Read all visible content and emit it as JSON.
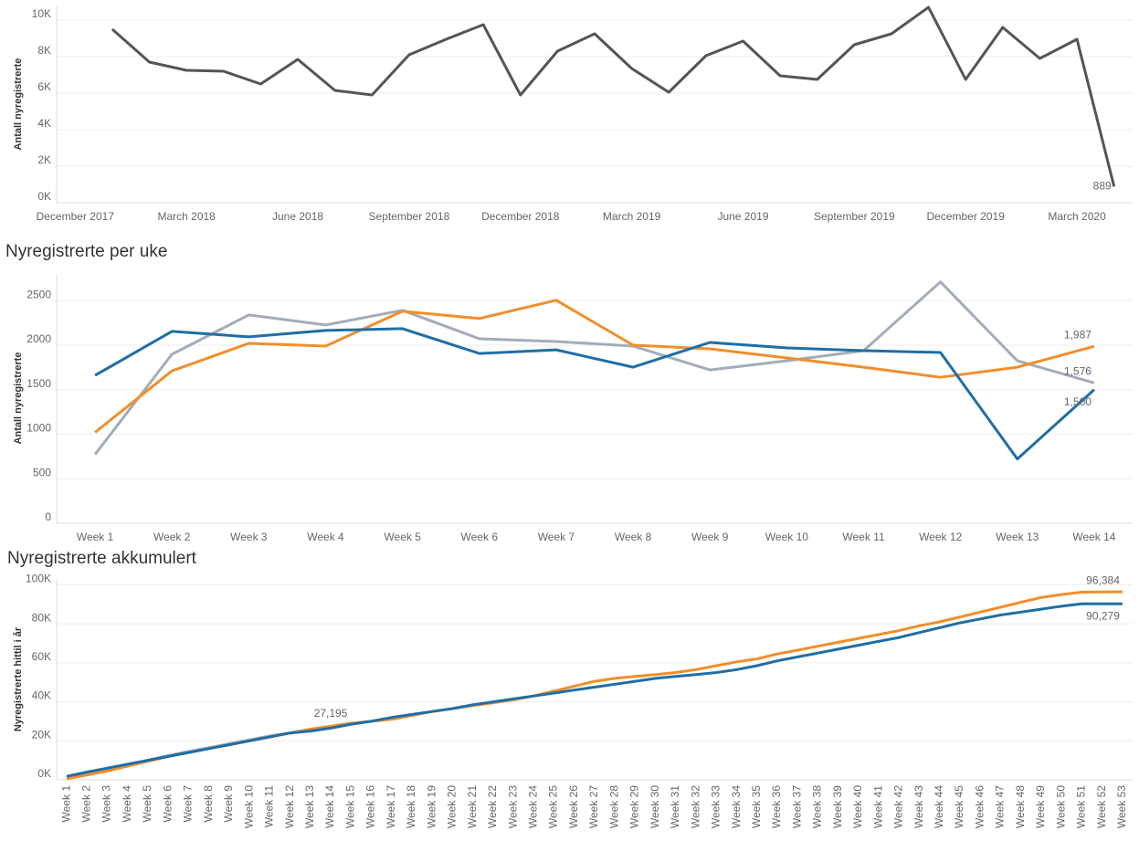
{
  "chart_data": [
    {
      "type": "line",
      "ylabel": "Antall nyregistrerte",
      "categories": [
        "December 2017",
        null,
        null,
        "March 2018",
        null,
        null,
        "June 2018",
        null,
        null,
        "September 2018",
        null,
        null,
        "December 2018",
        null,
        null,
        "March 2019",
        null,
        null,
        "June 2019",
        null,
        null,
        "September 2019",
        null,
        null,
        "December 2019",
        null,
        null,
        "March 2020",
        null
      ],
      "series": [
        {
          "color": "#555555",
          "values": [
            null,
            9500,
            7700,
            7250,
            7200,
            6500,
            7850,
            6150,
            5900,
            8100,
            8950,
            9750,
            5900,
            8300,
            9250,
            7350,
            6050,
            8050,
            8850,
            6950,
            6750,
            8650,
            9250,
            10700,
            6750,
            9600,
            7900,
            8950,
            889
          ],
          "value_labels": [
            null,
            null,
            null,
            null,
            null,
            null,
            null,
            null,
            null,
            null,
            null,
            null,
            null,
            null,
            null,
            null,
            null,
            null,
            null,
            null,
            null,
            null,
            null,
            null,
            null,
            null,
            null,
            null,
            "889"
          ]
        }
      ],
      "ylim": [
        0,
        10800
      ],
      "yticks": [
        {
          "value": 0,
          "label": "0K"
        },
        {
          "value": 2000,
          "label": "2K"
        },
        {
          "value": 4000,
          "label": "4K"
        },
        {
          "value": 6000,
          "label": "6K"
        },
        {
          "value": 8000,
          "label": "8K"
        },
        {
          "value": 10000,
          "label": "10K"
        }
      ],
      "grid": true
    },
    {
      "type": "line",
      "title": "Nyregistrerte per uke",
      "ylabel": "Antall nyregistrerte",
      "categories": [
        "Week 1",
        "Week 2",
        "Week 3",
        "Week 4",
        "Week 5",
        "Week 6",
        "Week 7",
        "Week 8",
        "Week 9",
        "Week 10",
        "Week 11",
        "Week 12",
        "Week 13",
        "Week 14"
      ],
      "series": [
        {
          "color": "#a3acb9",
          "values": [
            773,
            1897,
            2340,
            2227,
            2392,
            2072,
            2041,
            1990,
            1722,
            1825,
            1938,
            2711,
            1825,
            1576
          ],
          "value_labels": [
            null,
            null,
            null,
            null,
            null,
            null,
            null,
            null,
            null,
            null,
            null,
            null,
            null,
            "1,576"
          ]
        },
        {
          "color": "#f28e2b",
          "values": [
            1021,
            1711,
            2021,
            1990,
            2381,
            2299,
            2505,
            2000,
            1959,
            1856,
            1753,
            1639,
            1753,
            1987
          ],
          "value_labels": [
            null,
            null,
            null,
            null,
            null,
            null,
            null,
            null,
            null,
            null,
            null,
            null,
            null,
            "1,987"
          ]
        },
        {
          "color": "#1f6ea6",
          "values": [
            1660,
            2155,
            2093,
            2165,
            2186,
            1907,
            1948,
            1753,
            2031,
            1969,
            1938,
            1918,
            722,
            1500
          ],
          "value_labels": [
            null,
            null,
            null,
            null,
            null,
            null,
            null,
            null,
            null,
            null,
            null,
            null,
            null,
            "1,500"
          ]
        }
      ],
      "ylim": [
        0,
        2800
      ],
      "yticks": [
        0,
        500,
        1000,
        1500,
        2000,
        2500
      ],
      "grid": true
    },
    {
      "type": "line",
      "title": "Nyregistrerte akkumulert",
      "ylabel": "Nyregistrerte hittil i år",
      "categories": [
        "Week 1",
        "Week 2",
        "Week 3",
        "Week 4",
        "Week 5",
        "Week 6",
        "Week 7",
        "Week 8",
        "Week 9",
        "Week 10",
        "Week 11",
        "Week 12",
        "Week 13",
        "Week 14",
        "Week 15",
        "Week 16",
        "Week 17",
        "Week 18",
        "Week 19",
        "Week 20",
        "Week 21",
        "Week 22",
        "Week 23",
        "Week 24",
        "Week 25",
        "Week 26",
        "Week 27",
        "Week 28",
        "Week 29",
        "Week 30",
        "Week 31",
        "Week 32",
        "Week 33",
        "Week 34",
        "Week 35",
        "Week 36",
        "Week 37",
        "Week 38",
        "Week 39",
        "Week 40",
        "Week 41",
        "Week 42",
        "Week 43",
        "Week 44",
        "Week 45",
        "Week 46",
        "Week 47",
        "Week 48",
        "Week 49",
        "Week 50",
        "Week 51",
        "Week 52",
        "Week 53"
      ],
      "series": [
        {
          "color": "#a3acb9",
          "values": [
            1000,
            3000,
            5000,
            7500,
            10000,
            12500,
            14500,
            16500,
            18500,
            20500,
            22500,
            24000,
            25800,
            27195,
            null,
            null,
            null,
            null,
            null,
            null,
            null,
            null,
            null,
            null,
            null,
            null,
            null,
            null,
            null,
            null,
            null,
            null,
            null,
            null,
            null,
            null,
            null,
            null,
            null,
            null,
            null,
            null,
            null,
            null,
            null,
            null,
            null,
            null,
            null,
            null,
            null,
            null,
            null
          ],
          "value_labels": [
            null,
            null,
            null,
            null,
            null,
            null,
            null,
            null,
            null,
            null,
            null,
            null,
            null,
            "27,195",
            null,
            null,
            null,
            null,
            null,
            null,
            null,
            null,
            null,
            null,
            null,
            null,
            null,
            null,
            null,
            null,
            null,
            null,
            null,
            null,
            null,
            null,
            null,
            null,
            null,
            null,
            null,
            null,
            null,
            null,
            null,
            null,
            null,
            null,
            null,
            null,
            null,
            null,
            null
          ]
        },
        {
          "color": "#f28e2b",
          "values": [
            500,
            2500,
            4500,
            7000,
            9500,
            12000,
            14000,
            16000,
            18000,
            20000,
            22000,
            24000,
            26000,
            27500,
            29000,
            30000,
            31000,
            33000,
            35000,
            36500,
            38000,
            39500,
            41000,
            43000,
            45500,
            48000,
            50500,
            52000,
            53000,
            54000,
            55000,
            56500,
            58500,
            60500,
            62000,
            64500,
            66500,
            68500,
            70500,
            72500,
            74500,
            76500,
            79000,
            81000,
            83500,
            86000,
            88500,
            91000,
            93500,
            95000,
            96200,
            96300,
            96384
          ],
          "value_labels": [
            null,
            null,
            null,
            null,
            null,
            null,
            null,
            null,
            null,
            null,
            null,
            null,
            null,
            null,
            null,
            null,
            null,
            null,
            null,
            null,
            null,
            null,
            null,
            null,
            null,
            null,
            null,
            null,
            null,
            null,
            null,
            null,
            null,
            null,
            null,
            null,
            null,
            null,
            null,
            null,
            null,
            null,
            null,
            null,
            null,
            null,
            null,
            null,
            null,
            null,
            null,
            null,
            "96,384"
          ]
        },
        {
          "color": "#1f6ea6",
          "values": [
            1800,
            4000,
            6000,
            8000,
            10000,
            12000,
            14000,
            16000,
            18000,
            20000,
            22000,
            24000,
            25000,
            26500,
            28500,
            30000,
            32000,
            33500,
            35000,
            36500,
            38500,
            40000,
            41500,
            43000,
            44500,
            46000,
            47500,
            49000,
            50500,
            52000,
            53000,
            54000,
            55000,
            56500,
            58500,
            61000,
            63000,
            65000,
            67000,
            69000,
            71000,
            73000,
            75500,
            78000,
            80500,
            82500,
            84500,
            86000,
            87500,
            89000,
            90200,
            90250,
            90279
          ],
          "value_labels": [
            null,
            null,
            null,
            null,
            null,
            null,
            null,
            null,
            null,
            null,
            null,
            null,
            null,
            null,
            null,
            null,
            null,
            null,
            null,
            null,
            null,
            null,
            null,
            null,
            null,
            null,
            null,
            null,
            null,
            null,
            null,
            null,
            null,
            null,
            null,
            null,
            null,
            null,
            null,
            null,
            null,
            null,
            null,
            null,
            null,
            null,
            null,
            null,
            null,
            null,
            null,
            null,
            "90,279"
          ]
        }
      ],
      "ylim": [
        0,
        103000
      ],
      "yticks": [
        {
          "value": 0,
          "label": "0K"
        },
        {
          "value": 20000,
          "label": "20K"
        },
        {
          "value": 40000,
          "label": "40K"
        },
        {
          "value": 60000,
          "label": "60K"
        },
        {
          "value": 80000,
          "label": "80K"
        },
        {
          "value": 100000,
          "label": "100K"
        }
      ],
      "grid": true
    }
  ]
}
